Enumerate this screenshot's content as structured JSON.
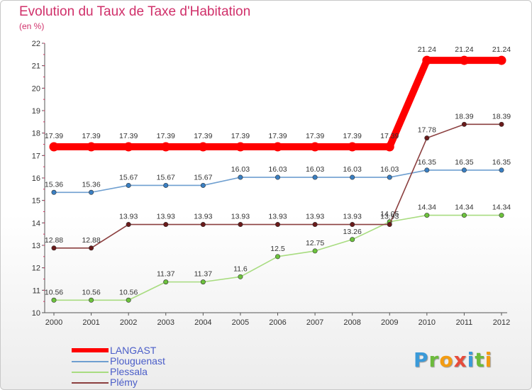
{
  "title": "Evolution du Taux de Taxe d'Habitation",
  "subtitle": "(en %)",
  "logo": {
    "letters": [
      {
        "ch": "P",
        "color": "#3a9ad9"
      },
      {
        "ch": "r",
        "color": "#6cbb3c"
      },
      {
        "ch": "o",
        "color": "#f39c12"
      },
      {
        "ch": "x",
        "color": "#e74c3c"
      },
      {
        "ch": "i",
        "color": "#3a9ad9"
      },
      {
        "ch": "t",
        "color": "#6cbb3c"
      },
      {
        "ch": "i",
        "color": "#f39c12"
      }
    ]
  },
  "chart_data": {
    "type": "line",
    "x": [
      2000,
      2001,
      2002,
      2003,
      2004,
      2005,
      2006,
      2007,
      2008,
      2009,
      2010,
      2011,
      2012
    ],
    "xticklabels": [
      "2000",
      "2001",
      "2002",
      "2003",
      "2004",
      "2005",
      "2006",
      "2007",
      "2008",
      "2009",
      "2010",
      "2011",
      "2012"
    ],
    "ylim": [
      10,
      22
    ],
    "yticks": [
      10,
      11,
      12,
      13,
      14,
      15,
      16,
      17,
      18,
      19,
      20,
      21,
      22
    ],
    "grid": false,
    "legend_position": "bottom-left",
    "series": [
      {
        "name": "LANGAST",
        "color": "#ff0000",
        "values": [
          17.39,
          17.39,
          17.39,
          17.39,
          17.39,
          17.39,
          17.39,
          17.39,
          17.39,
          17.39,
          21.24,
          21.24,
          21.24
        ],
        "labels": [
          "17.39",
          "17.39",
          "17.39",
          "17.39",
          "17.39",
          "17.39",
          "17.39",
          "17.39",
          "17.39",
          "17.39",
          "21.24",
          "21.24",
          "21.24"
        ]
      },
      {
        "name": "Plouguenast",
        "color": "#6f9fd0",
        "marker": "#3a7fc2",
        "values": [
          15.36,
          15.36,
          15.67,
          15.67,
          15.67,
          16.03,
          16.03,
          16.03,
          16.03,
          16.03,
          16.35,
          16.35,
          16.35
        ],
        "labels": [
          "15.36",
          "15.36",
          "15.67",
          "15.67",
          "15.67",
          "16.03",
          "16.03",
          "16.03",
          "16.03",
          "16.03",
          "16.35",
          "16.35",
          "16.35"
        ]
      },
      {
        "name": "Plessala",
        "color": "#a8dc80",
        "marker": "#6cc23c",
        "values": [
          10.56,
          10.56,
          10.56,
          11.37,
          11.37,
          11.6,
          12.5,
          12.75,
          13.26,
          14.05,
          14.34,
          14.34,
          14.34
        ],
        "labels": [
          "10.56",
          "10.56",
          "10.56",
          "11.37",
          "11.37",
          "11.6",
          "12.5",
          "12.75",
          "13.26",
          "14.05",
          "14.34",
          "14.34",
          "14.34"
        ]
      },
      {
        "name": "Plémy",
        "color": "#8b3f3f",
        "marker": "#6a1a1a",
        "values": [
          12.88,
          12.88,
          13.93,
          13.93,
          13.93,
          13.93,
          13.93,
          13.93,
          13.93,
          13.93,
          17.78,
          18.39,
          18.39
        ],
        "labels": [
          "12.88",
          "12.88",
          "13.93",
          "13.93",
          "13.93",
          "13.93",
          "13.93",
          "13.93",
          "13.93",
          "13.93",
          "17.78",
          "18.39",
          "18.39"
        ]
      }
    ]
  }
}
